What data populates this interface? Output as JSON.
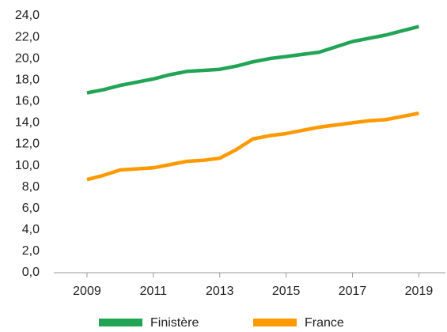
{
  "chart_data": {
    "type": "line",
    "x": [
      2009,
      2009.5,
      2010,
      2010.5,
      2011,
      2011.5,
      2012,
      2012.5,
      2013,
      2013.5,
      2014,
      2014.5,
      2015,
      2015.5,
      2016,
      2016.5,
      2017,
      2017.5,
      2018,
      2018.5,
      2019
    ],
    "series": [
      {
        "name": "Finistère",
        "color": "#22a455",
        "values": [
          16.8,
          17.1,
          17.5,
          17.8,
          18.1,
          18.5,
          18.8,
          18.9,
          19.0,
          19.3,
          19.7,
          20.0,
          20.2,
          20.4,
          20.6,
          21.1,
          21.6,
          21.9,
          22.2,
          22.6,
          23.0
        ]
      },
      {
        "name": "France",
        "color": "#ff9900",
        "values": [
          8.7,
          9.1,
          9.6,
          9.7,
          9.8,
          10.1,
          10.4,
          10.5,
          10.7,
          11.5,
          12.5,
          12.8,
          13.0,
          13.3,
          13.6,
          13.8,
          14.0,
          14.2,
          14.3,
          14.6,
          14.9
        ]
      }
    ],
    "xlim": [
      2008,
      2019.8
    ],
    "xticks": [
      2009,
      2011,
      2013,
      2015,
      2017,
      2019
    ],
    "ylim": [
      0,
      24
    ],
    "yticks": [
      {
        "value": 0,
        "label": "0,0"
      },
      {
        "value": 2,
        "label": "2,0"
      },
      {
        "value": 4,
        "label": "4,0"
      },
      {
        "value": 6,
        "label": "6,0"
      },
      {
        "value": 8,
        "label": "8,0"
      },
      {
        "value": 10,
        "label": "10,0"
      },
      {
        "value": 12,
        "label": "12,0"
      },
      {
        "value": 14,
        "label": "14,0"
      },
      {
        "value": 16,
        "label": "16,0"
      },
      {
        "value": 18,
        "label": "18,0"
      },
      {
        "value": 20,
        "label": "20,0"
      },
      {
        "value": 22,
        "label": "22,0"
      },
      {
        "value": 24,
        "label": "24,0"
      }
    ],
    "grid": false,
    "legend": "bottom"
  }
}
